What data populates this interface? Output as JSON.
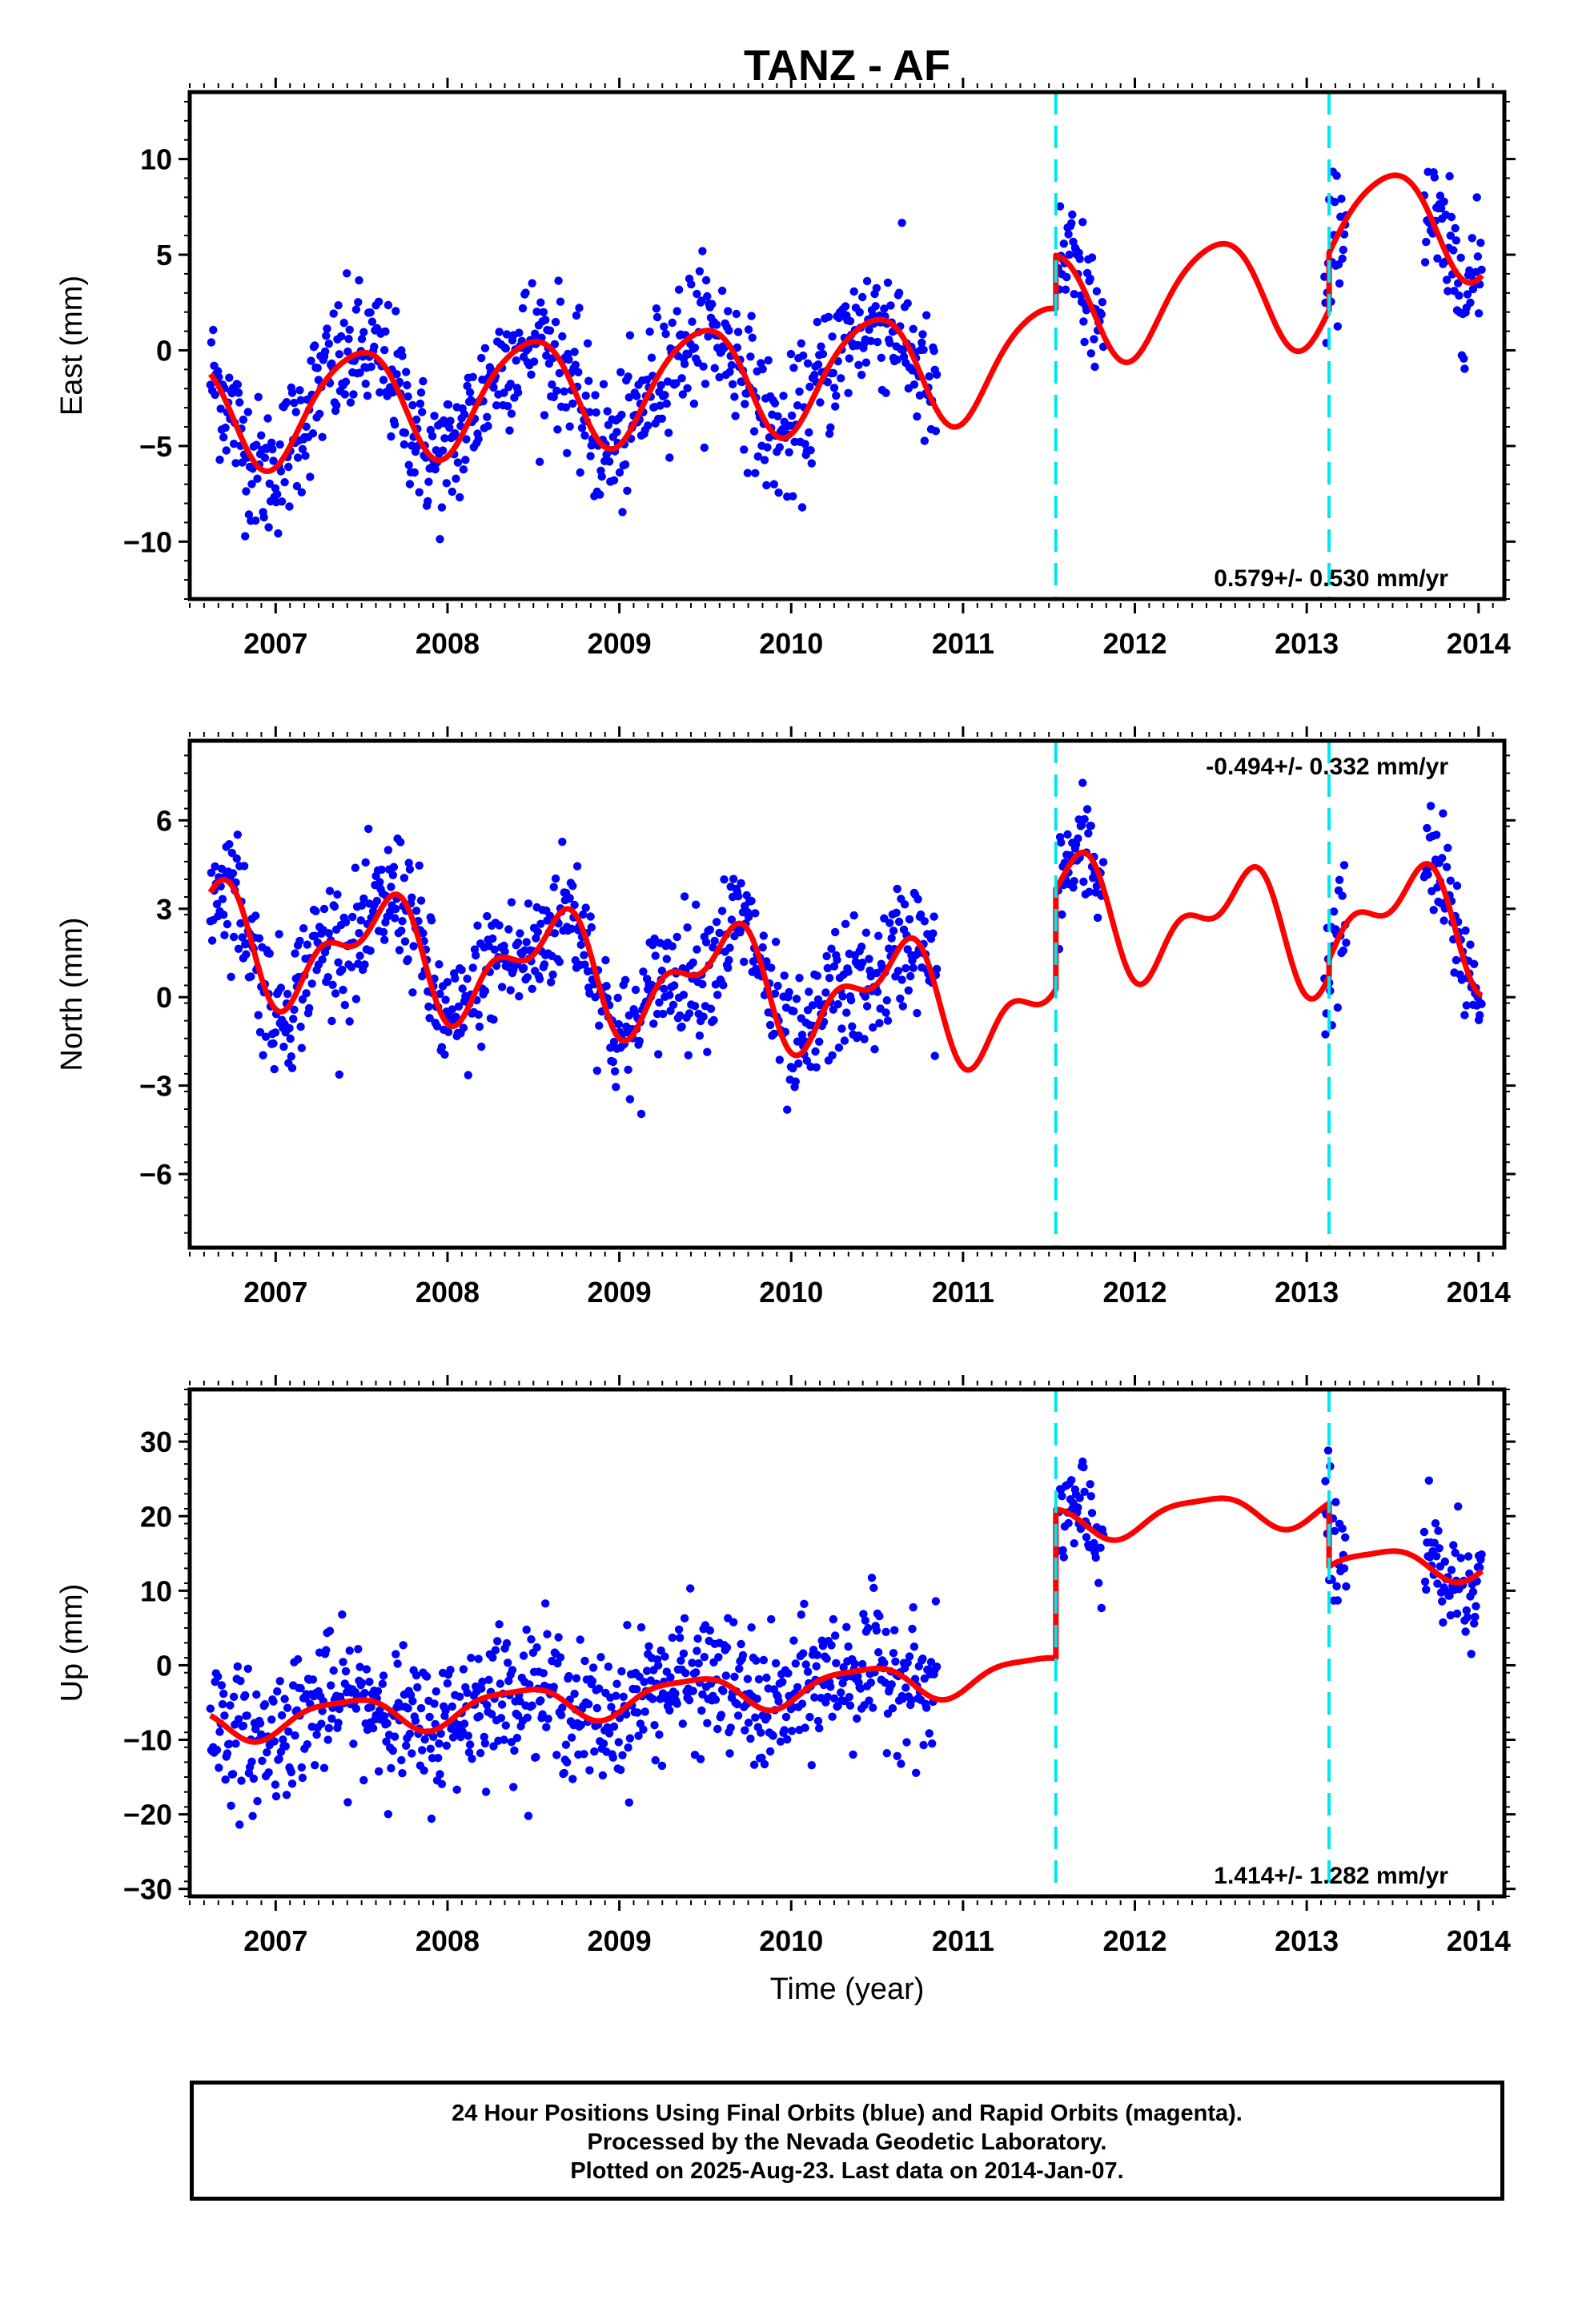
{
  "chart_data": {
    "type": "scatter",
    "title": "TANZ - AF",
    "xlabel": "Time (year)",
    "xticks": [
      "2007",
      "2008",
      "2009",
      "2010",
      "2011",
      "2012",
      "2013",
      "2014"
    ],
    "xlim": [
      2006.5,
      2014.15
    ],
    "breaks": [
      2011.54,
      2013.13
    ],
    "colors": {
      "points": "#0000ff",
      "model": "#ff0000",
      "breaks": "#00e5ee",
      "frame": "#000000"
    },
    "point_sampling": {
      "step_days": 2,
      "gap": [
        2010.85,
        2011.55
      ],
      "second_gap": [
        2011.82,
        2013.1
      ],
      "third_gap": [
        2013.23,
        2013.68
      ]
    },
    "panels": [
      {
        "ylabel": "East (mm)",
        "ylim": [
          -13,
          13.5
        ],
        "yticks": [
          -10,
          -5,
          0,
          5,
          10
        ],
        "rate": "0.579+/- 0.530 mm/yr",
        "rate_position": "bottom-right",
        "model": {
          "offset": -1.3,
          "trend": 0.579,
          "annual_amp": 2.9,
          "annual_phase": 0.22,
          "semi_amp": 0.4,
          "semi_phase": 0.05,
          "noise": 1.8,
          "steps": [
            {
              "t": 2011.54,
              "dy": 2.8
            },
            {
              "t": 2013.13,
              "dy": 3.0
            }
          ]
        }
      },
      {
        "ylabel": "North (mm)",
        "ylim": [
          -8.5,
          8.7
        ],
        "yticks": [
          -6,
          -3,
          0,
          3,
          6
        ],
        "rate": "-0.494+/- 0.332 mm/yr",
        "rate_position": "top-right",
        "model": {
          "offset": 0.3,
          "trend": -0.494,
          "annual_amp": 1.6,
          "annual_phase": 0.35,
          "semi_amp": 0.9,
          "semi_phase": 0.12,
          "noise": 1.1,
          "steps": [
            {
              "t": 2011.54,
              "dy": 3.4
            },
            {
              "t": 2013.13,
              "dy": 0.6
            }
          ]
        }
      },
      {
        "ylabel": "Up (mm)",
        "ylim": [
          -31,
          37
        ],
        "yticks": [
          -30,
          -20,
          -10,
          0,
          10,
          20,
          30
        ],
        "rate": "1.414+/- 1.282 mm/yr",
        "rate_position": "bottom-right",
        "model": {
          "offset": -3.0,
          "trend": 1.414,
          "annual_amp": 2.3,
          "annual_phase": 0.15,
          "semi_amp": 0.6,
          "semi_phase": 0.0,
          "noise": 4.5,
          "steps": [
            {
              "t": 2011.54,
              "dy": 20.0
            },
            {
              "t": 2013.13,
              "dy": -8.5
            }
          ]
        }
      }
    ]
  },
  "footer": {
    "line1": "24 Hour Positions Using Final Orbits (blue) and Rapid Orbits (magenta).",
    "line2": "Processed by the Nevada Geodetic Laboratory.",
    "line3": "Plotted on 2025-Aug-23. Last data on 2014-Jan-07."
  }
}
